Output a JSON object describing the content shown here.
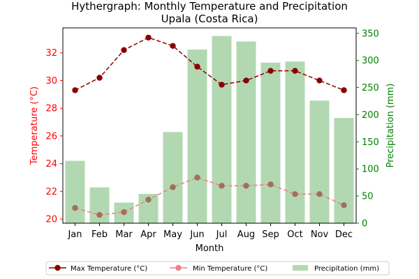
{
  "chart_data": {
    "type": "bar+line",
    "title": "Hythergraph: Monthly Temperature and Precipitation",
    "subtitle": "Upala (Costa Rica)",
    "xlabel": "Month",
    "ylabel_left": "Temperature (°C)",
    "ylabel_right": "Precipitation (mm)",
    "categories": [
      "Jan",
      "Feb",
      "Mar",
      "Apr",
      "May",
      "Jun",
      "Jul",
      "Aug",
      "Sep",
      "Oct",
      "Nov",
      "Dec"
    ],
    "ylim_left": [
      19.7,
      33.8
    ],
    "ylim_right": [
      0,
      360
    ],
    "yticks_left": [
      20,
      22,
      24,
      26,
      28,
      30,
      32
    ],
    "yticks_right": [
      0,
      50,
      100,
      150,
      200,
      250,
      300,
      350
    ],
    "series": [
      {
        "name": "Max Temperature (°C)",
        "kind": "line",
        "axis": "left",
        "color": "#8b0000",
        "dash": "dashed",
        "values": [
          29.3,
          30.2,
          32.2,
          33.1,
          32.5,
          31.0,
          29.7,
          30.0,
          30.7,
          30.7,
          30.0,
          29.3
        ]
      },
      {
        "name": "Min Temperature (°C)",
        "kind": "line",
        "axis": "left",
        "color": "#f08080",
        "dash": "dashed",
        "values": [
          20.8,
          20.3,
          20.5,
          21.4,
          22.3,
          23.0,
          22.4,
          22.4,
          22.5,
          21.8,
          21.8,
          21.0
        ]
      },
      {
        "name": "Precipitation (mm)",
        "kind": "bar",
        "axis": "right",
        "color": "#b2d8b2",
        "values": [
          115,
          66,
          38,
          54,
          168,
          320,
          345,
          335,
          296,
          298,
          226,
          194
        ]
      }
    ],
    "legend_position": "bottom-center",
    "grid": false
  }
}
